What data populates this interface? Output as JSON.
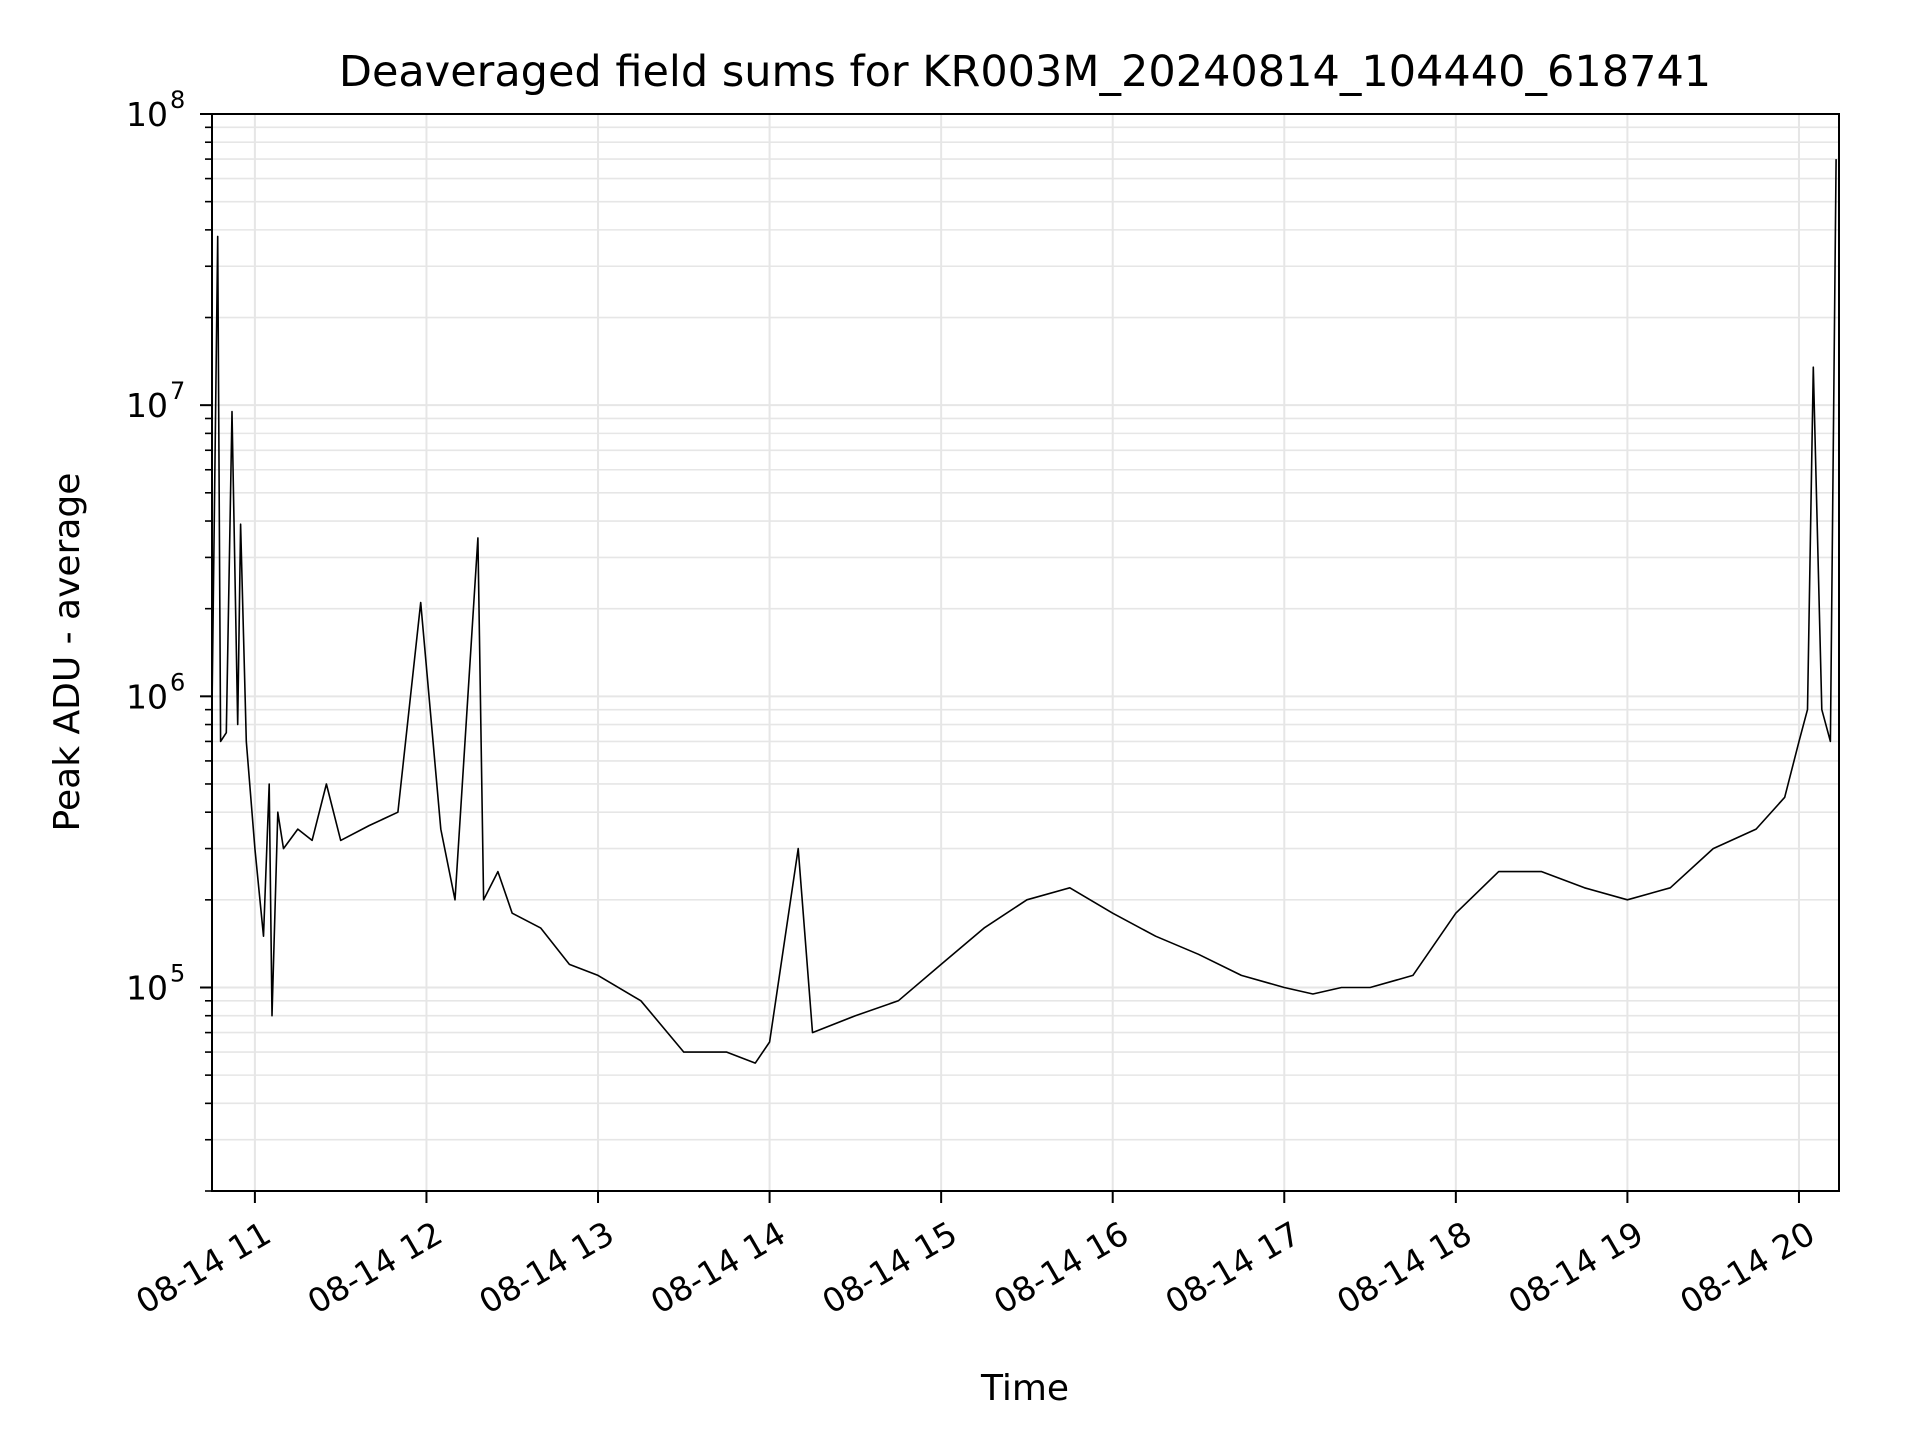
{
  "chart_data": {
    "type": "line",
    "title": "Deaveraged field sums for KR003M_20240814_104440_618741",
    "xlabel": "Time",
    "ylabel": "Peak ADU - average",
    "y_scale": "log",
    "ylim": [
      20000,
      100000000
    ],
    "xlim": [
      "08-14 10:45",
      "08-14 20:14"
    ],
    "x_ticks": [
      "08-14 11",
      "08-14 12",
      "08-14 13",
      "08-14 14",
      "08-14 15",
      "08-14 16",
      "08-14 17",
      "08-14 18",
      "08-14 19",
      "08-14 20"
    ],
    "y_ticks": [
      {
        "base": "10",
        "exp": "5",
        "value": 100000
      },
      {
        "base": "10",
        "exp": "6",
        "value": 1000000
      },
      {
        "base": "10",
        "exp": "7",
        "value": 10000000
      },
      {
        "base": "10",
        "exp": "8",
        "value": 100000000
      }
    ],
    "grid": true,
    "line_color": "#000000",
    "grid_color": "#e6e6e6",
    "series": [
      {
        "x": [
          "08-14 10:45",
          "08-14 10:47",
          "08-14 10:48",
          "08-14 10:50",
          "08-14 10:52",
          "08-14 10:54",
          "08-14 10:55",
          "08-14 10:57",
          "08-14 11:00",
          "08-14 11:03",
          "08-14 11:05",
          "08-14 11:06",
          "08-14 11:08",
          "08-14 11:10",
          "08-14 11:15",
          "08-14 11:20",
          "08-14 11:25",
          "08-14 11:30",
          "08-14 11:40",
          "08-14 11:50",
          "08-14 11:58",
          "08-14 12:05",
          "08-14 12:10",
          "08-14 12:18",
          "08-14 12:20",
          "08-14 12:25",
          "08-14 12:30",
          "08-14 12:40",
          "08-14 12:50",
          "08-14 13:00",
          "08-14 13:15",
          "08-14 13:30",
          "08-14 13:45",
          "08-14 13:55",
          "08-14 14:00",
          "08-14 14:10",
          "08-14 14:15",
          "08-14 14:30",
          "08-14 14:45",
          "08-14 15:00",
          "08-14 15:15",
          "08-14 15:30",
          "08-14 15:45",
          "08-14 16:00",
          "08-14 16:15",
          "08-14 16:30",
          "08-14 16:45",
          "08-14 17:00",
          "08-14 17:10",
          "08-14 17:20",
          "08-14 17:30",
          "08-14 17:45",
          "08-14 18:00",
          "08-14 18:15",
          "08-14 18:30",
          "08-14 18:45",
          "08-14 19:00",
          "08-14 19:15",
          "08-14 19:30",
          "08-14 19:45",
          "08-14 19:55",
          "08-14 20:00",
          "08-14 20:03",
          "08-14 20:05",
          "08-14 20:08",
          "08-14 20:11",
          "08-14 20:13"
        ],
        "y": [
          900000,
          38000000,
          700000,
          750000,
          9500000,
          800000,
          3900000,
          700000,
          300000,
          150000,
          500000,
          80000,
          400000,
          300000,
          350000,
          320000,
          500000,
          320000,
          360000,
          400000,
          2100000,
          350000,
          200000,
          3500000,
          200000,
          250000,
          180000,
          160000,
          120000,
          110000,
          90000,
          60000,
          60000,
          55000,
          65000,
          300000,
          70000,
          80000,
          90000,
          120000,
          160000,
          200000,
          220000,
          180000,
          150000,
          130000,
          110000,
          100000,
          95000,
          100000,
          100000,
          110000,
          180000,
          250000,
          250000,
          220000,
          200000,
          220000,
          300000,
          350000,
          450000,
          700000,
          900000,
          13500000,
          900000,
          700000,
          70000000
        ]
      }
    ]
  }
}
